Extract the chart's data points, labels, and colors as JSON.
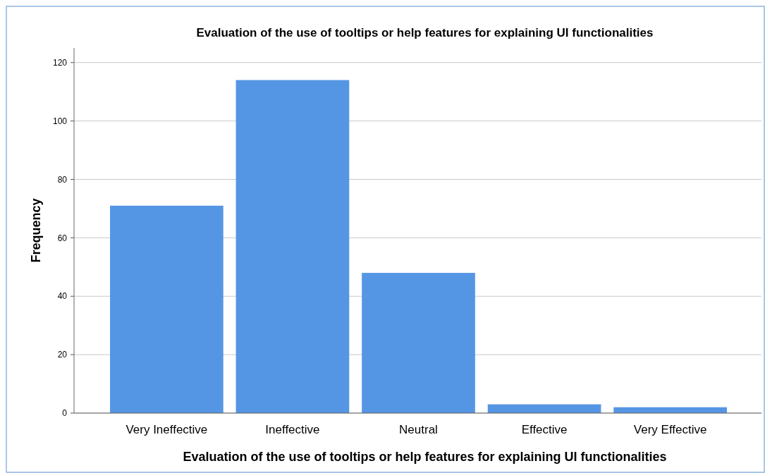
{
  "chart_data": {
    "type": "bar",
    "title": "Evaluation of the use of tooltips or help features for explaining UI functionalities",
    "xlabel": "Evaluation of the use of tooltips or help features for explaining UI functionalities",
    "ylabel": "Frequency",
    "categories": [
      "Very Ineffective",
      "Ineffective",
      "Neutral",
      "Effective",
      "Very Effective"
    ],
    "values": [
      71,
      114,
      48,
      3,
      2
    ],
    "color": "#5596e4",
    "ylim": [
      0,
      125
    ],
    "yticks": [
      0,
      20,
      40,
      60,
      80,
      100,
      120
    ],
    "grid": "y"
  }
}
